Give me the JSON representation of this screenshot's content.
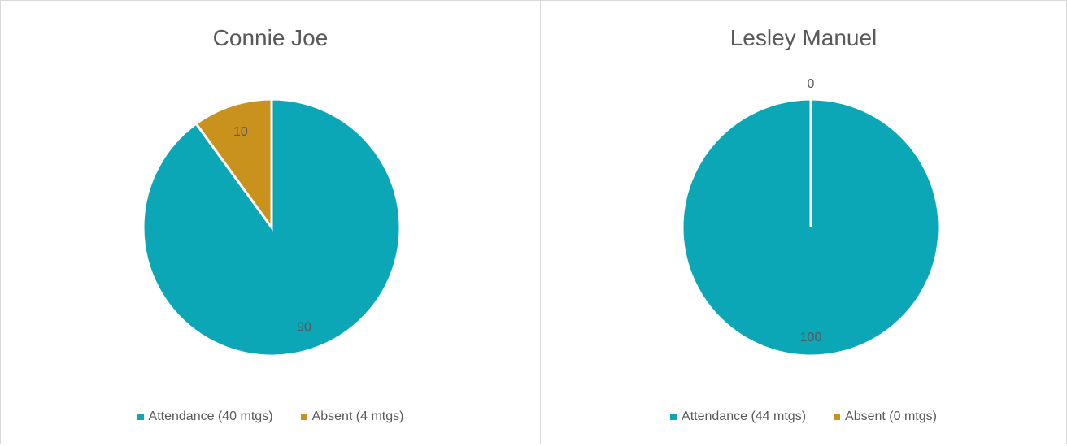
{
  "colors": {
    "attendance": "#0ba7b6",
    "absent": "#c8921d",
    "label_text": "#595959"
  },
  "chart_data": [
    {
      "type": "pie",
      "title": "Connie Joe",
      "categories": [
        "Attendance (40 mtgs)",
        "Absent (4 mtgs)"
      ],
      "values": [
        90,
        10
      ],
      "data_labels": [
        "90",
        "10"
      ],
      "legend_position": "bottom"
    },
    {
      "type": "pie",
      "title": "Lesley Manuel",
      "categories": [
        "Attendance (44 mtgs)",
        "Absent (0 mtgs)"
      ],
      "values": [
        100,
        0
      ],
      "data_labels": [
        "100",
        "0"
      ],
      "legend_position": "bottom"
    }
  ]
}
